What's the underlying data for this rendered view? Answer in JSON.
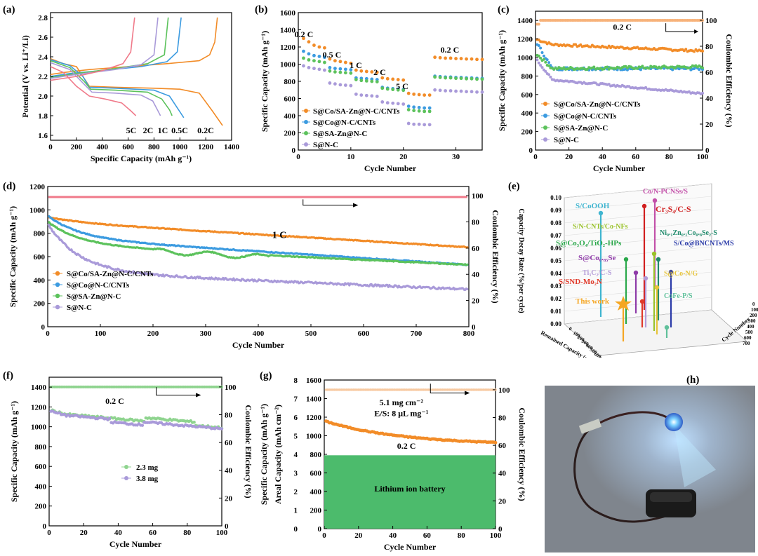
{
  "palette": {
    "orange": "#f28c28",
    "blue": "#3c9be0",
    "green": "#5cc25c",
    "purple": "#a99ad9",
    "pink": "#f07a8a",
    "lightgreen": "#8fd48f",
    "peach": "#f7b27a"
  },
  "panels": {
    "a": {
      "label": "(a)",
      "xlabel": "Specific Capacity (mAh g⁻¹)",
      "ylabel": "Potential (V vs. Li⁺/Li)",
      "xticks": [
        "0",
        "200",
        "400",
        "600",
        "800",
        "1000",
        "1200",
        "1400"
      ],
      "yticks": [
        "1.6",
        "1.8",
        "2.0",
        "2.2",
        "2.4",
        "2.6",
        "2.8"
      ],
      "rate_labels": [
        "5C",
        "2C",
        "1C",
        "0.5C",
        "0.2C"
      ]
    },
    "b": {
      "label": "(b)",
      "xlabel": "Cycle Number",
      "ylabel": "Specific Capacity (mAh g⁻¹)",
      "xticks": [
        "0",
        "10",
        "20",
        "30"
      ],
      "yticks": [
        "0",
        "200",
        "400",
        "600",
        "800",
        "1000",
        "1200",
        "1400",
        "1600"
      ],
      "rates": [
        "0.2 C",
        "0.5 C",
        "1 C",
        "2 C",
        "5 C",
        "0.2 C"
      ],
      "legend": [
        "S@Co/SA-Zn@N-C/CNTs",
        "S@Co@N-C/CNTs",
        "S@SA-Zn@N-C",
        "S@N-C"
      ]
    },
    "c": {
      "label": "(c)",
      "xlabel": "Cycle Number",
      "ylabel": "Specific Capacity (mAh g⁻¹)",
      "y2label": "Coulombic Efficiency (%)",
      "xticks": [
        "0",
        "20",
        "40",
        "60",
        "80",
        "100"
      ],
      "yticks": [
        "0",
        "200",
        "400",
        "600",
        "800",
        "1000",
        "1200",
        "1400"
      ],
      "y2ticks": [
        "0",
        "20",
        "40",
        "60",
        "80",
        "100"
      ],
      "rate": "0.2 C",
      "legend": [
        "S@Co/SA-Zn@N-C/CNTs",
        "S@Co@N-C/CNTs",
        "S@SA-Zn@N-C",
        "S@N-C"
      ]
    },
    "d": {
      "label": "(d)",
      "xlabel": "Cycle Number",
      "ylabel": "Specific Capacity (mAh g⁻¹)",
      "y2label": "Coulombic Efficiency (%)",
      "xticks": [
        "0",
        "100",
        "200",
        "300",
        "400",
        "500",
        "600",
        "700",
        "800"
      ],
      "yticks": [
        "0",
        "200",
        "400",
        "600",
        "800",
        "1000",
        "1200"
      ],
      "y2ticks": [
        "0",
        "20",
        "40",
        "60",
        "80",
        "100"
      ],
      "rate": "1 C",
      "legend": [
        "S@Co/SA-Zn@N-C/CNTs",
        "S@Co@N-C/CNTs",
        "S@SA-Zn@N-C",
        "S@N-C"
      ]
    },
    "e": {
      "label": "(e)",
      "zlabel": "Capacity Decay Rate (%/per cycle)",
      "xlabel": "Remained Capacity (mAh g⁻¹)",
      "ylabel": "Cycle Number",
      "zticks": [
        "0.00",
        "0.01",
        "0.02",
        "0.03",
        "0.04",
        "0.05",
        "0.06",
        "0.07",
        "0.08",
        "0.09",
        "0.10"
      ],
      "works": [
        {
          "name": "Co/N-PCNSs/S",
          "color": "#c24fa8"
        },
        {
          "name": "S/CoOOH",
          "color": "#3fb5d0"
        },
        {
          "name": "Cr₃S₄/C-S",
          "color": "#d11f1f"
        },
        {
          "name": "S/N-CNTs/Co-NFs",
          "color": "#9ac22a"
        },
        {
          "name": "Ni₀.₁Zn₀.₁Co₀.₈Se₂-S",
          "color": "#1f8a6b"
        },
        {
          "name": "S@Co₃O₄/TiO₂-HPs",
          "color": "#2aa84a"
        },
        {
          "name": "S/Co@BNCNTs/MS",
          "color": "#2a3aa8"
        },
        {
          "name": "S@Co₀.₈₅Se",
          "color": "#8e3aa8"
        },
        {
          "name": "Ti₃C₂/C-S",
          "color": "#b49bd8"
        },
        {
          "name": "S@Co-N/G",
          "color": "#e7c43a"
        },
        {
          "name": "S/SND-Mo₂N",
          "color": "#e03a2a"
        },
        {
          "name": "CoFe-P/S",
          "color": "#5fc09a"
        },
        {
          "name": "This work",
          "color": "#f5a623"
        }
      ],
      "xticks": [
        "0",
        "100",
        "200",
        "300",
        "400",
        "500",
        "600",
        "700"
      ],
      "yticks": [
        "700",
        "600",
        "500",
        "400",
        "300",
        "200",
        "100",
        "0"
      ]
    },
    "f": {
      "label": "(f)",
      "xlabel": "Cycle Number",
      "ylabel": "Specific Capacity (mAh g⁻¹)",
      "y2label": "Coulombic Efficiency (%)",
      "xticks": [
        "0",
        "20",
        "40",
        "60",
        "80",
        "100"
      ],
      "yticks": [
        "0",
        "200",
        "400",
        "600",
        "800",
        "1000",
        "1200",
        "1400"
      ],
      "y2ticks": [
        "0",
        "20",
        "40",
        "60",
        "80",
        "100"
      ],
      "rate": "0.2 C",
      "legend": [
        "2.3 mg",
        "3.8 mg"
      ]
    },
    "g": {
      "label": "(g)",
      "xlabel": "Cycle Number",
      "ylabel": "Specific Capacity (mAh g⁻¹)",
      "y3label": "Areal Capacity (mAh cm⁻²)",
      "y2label": "Coulombic Efficiency (%)",
      "xticks": [
        "0",
        "20",
        "40",
        "60",
        "80",
        "100"
      ],
      "yticks": [
        "0",
        "200",
        "400",
        "600",
        "800",
        "1000",
        "1200",
        "1400",
        "1600"
      ],
      "y3ticks": [
        "0",
        "1",
        "2",
        "3",
        "4",
        "5",
        "6",
        "7",
        "8"
      ],
      "y2ticks": [
        "0",
        "20",
        "40",
        "60",
        "80",
        "100"
      ],
      "loading": "5.1 mg cm⁻²",
      "es": "E/S: 8 μL mg⁻¹",
      "rate": "0.2 C",
      "box_label": "Lithium ion battery"
    },
    "h": {
      "label": "(h)"
    }
  },
  "chart_data": [
    {
      "panel": "a",
      "type": "line",
      "title": "",
      "xlabel": "Specific Capacity (mAh g⁻¹)",
      "ylabel": "Potential (V vs. Li⁺/Li)",
      "xlim": [
        0,
        1400
      ],
      "ylim": [
        1.55,
        2.85
      ],
      "series": [
        {
          "name": "0.2C",
          "color": "#f28c28",
          "discharge": [
            [
              0,
              2.38
            ],
            [
              100,
              2.33
            ],
            [
              200,
              2.3
            ],
            [
              260,
              2.18
            ],
            [
              300,
              2.1
            ],
            [
              500,
              2.09
            ],
            [
              800,
              2.08
            ],
            [
              1000,
              2.07
            ],
            [
              1150,
              2.03
            ],
            [
              1250,
              1.85
            ],
            [
              1330,
              1.7
            ]
          ],
          "charge": [
            [
              0,
              2.22
            ],
            [
              100,
              2.24
            ],
            [
              300,
              2.27
            ],
            [
              600,
              2.3
            ],
            [
              900,
              2.33
            ],
            [
              1150,
              2.36
            ],
            [
              1230,
              2.42
            ],
            [
              1270,
              2.55
            ],
            [
              1290,
              2.8
            ]
          ]
        },
        {
          "name": "0.5C",
          "color": "#3c9be0",
          "discharge": [
            [
              0,
              2.37
            ],
            [
              150,
              2.31
            ],
            [
              250,
              2.2
            ],
            [
              300,
              2.09
            ],
            [
              500,
              2.08
            ],
            [
              800,
              2.06
            ],
            [
              920,
              2.0
            ],
            [
              980,
              1.88
            ],
            [
              1030,
              1.78
            ]
          ],
          "charge": [
            [
              0,
              2.2
            ],
            [
              150,
              2.23
            ],
            [
              400,
              2.26
            ],
            [
              700,
              2.3
            ],
            [
              900,
              2.35
            ],
            [
              980,
              2.45
            ],
            [
              1010,
              2.8
            ]
          ]
        },
        {
          "name": "1C",
          "color": "#5cc25c",
          "discharge": [
            [
              0,
              2.36
            ],
            [
              150,
              2.29
            ],
            [
              260,
              2.15
            ],
            [
              310,
              2.07
            ],
            [
              500,
              2.06
            ],
            [
              750,
              2.04
            ],
            [
              860,
              1.97
            ],
            [
              920,
              1.86
            ],
            [
              940,
              1.8
            ]
          ],
          "charge": [
            [
              0,
              2.19
            ],
            [
              200,
              2.23
            ],
            [
              500,
              2.28
            ],
            [
              750,
              2.33
            ],
            [
              880,
              2.42
            ],
            [
              910,
              2.8
            ]
          ]
        },
        {
          "name": "2C",
          "color": "#a99ad9",
          "discharge": [
            [
              0,
              2.34
            ],
            [
              150,
              2.27
            ],
            [
              260,
              2.12
            ],
            [
              320,
              2.04
            ],
            [
              500,
              2.03
            ],
            [
              700,
              2.01
            ],
            [
              790,
              1.95
            ],
            [
              830,
              1.85
            ],
            [
              850,
              1.8
            ]
          ],
          "charge": [
            [
              0,
              2.18
            ],
            [
              200,
              2.22
            ],
            [
              500,
              2.27
            ],
            [
              700,
              2.32
            ],
            [
              800,
              2.42
            ],
            [
              830,
              2.8
            ]
          ]
        },
        {
          "name": "5C",
          "color": "#f07a8a",
          "discharge": [
            [
              0,
              2.3
            ],
            [
              100,
              2.24
            ],
            [
              200,
              2.1
            ],
            [
              300,
              2.0
            ],
            [
              420,
              1.97
            ],
            [
              550,
              1.93
            ],
            [
              620,
              1.85
            ],
            [
              660,
              1.8
            ]
          ],
          "charge": [
            [
              0,
              2.16
            ],
            [
              200,
              2.2
            ],
            [
              400,
              2.26
            ],
            [
              560,
              2.33
            ],
            [
              620,
              2.45
            ],
            [
              650,
              2.8
            ]
          ]
        }
      ]
    },
    {
      "panel": "b",
      "type": "scatter",
      "title": "",
      "xlabel": "Cycle Number",
      "ylabel": "Specific Capacity (mAh g⁻¹)",
      "xlim": [
        0,
        35
      ],
      "ylim": [
        0,
        1600
      ],
      "series": [
        {
          "name": "S@Co/SA-Zn@N-C/CNTs",
          "color": "#f28c28",
          "values": [
            1300,
            1260,
            1220,
            1200,
            1190,
            1060,
            1040,
            1030,
            1020,
            1010,
            930,
            920,
            915,
            910,
            905,
            840,
            830,
            825,
            820,
            815,
            660,
            650,
            645,
            640,
            640,
            1080,
            1075,
            1070,
            1070,
            1065,
            1065,
            1060,
            1060,
            1055,
            1055
          ]
        },
        {
          "name": "S@Co@N-C/CNTs",
          "color": "#3c9be0",
          "values": [
            1150,
            1120,
            1100,
            1090,
            1080,
            960,
            950,
            945,
            940,
            935,
            840,
            835,
            830,
            825,
            820,
            730,
            720,
            715,
            710,
            705,
            510,
            500,
            495,
            490,
            490,
            860,
            855,
            850,
            850,
            845,
            845,
            840,
            840,
            835,
            835
          ]
        },
        {
          "name": "S@SA-Zn@N-C",
          "color": "#5cc25c",
          "values": [
            1070,
            1050,
            1040,
            1030,
            1020,
            920,
            910,
            905,
            900,
            895,
            820,
            810,
            805,
            800,
            795,
            720,
            710,
            705,
            700,
            695,
            470,
            460,
            455,
            450,
            450,
            850,
            845,
            840,
            840,
            835,
            835,
            830,
            830,
            825,
            825
          ]
        },
        {
          "name": "S@N-C",
          "color": "#a99ad9",
          "values": [
            980,
            960,
            950,
            940,
            930,
            780,
            770,
            760,
            755,
            750,
            650,
            640,
            635,
            630,
            625,
            560,
            550,
            545,
            540,
            535,
            310,
            300,
            300,
            295,
            295,
            700,
            695,
            690,
            690,
            685,
            685,
            680,
            680,
            675,
            675
          ]
        }
      ]
    },
    {
      "panel": "c",
      "type": "scatter",
      "title": "",
      "xlabel": "Cycle Number",
      "ylabel": "Specific Capacity (mAh g⁻¹)",
      "y2label": "Coulombic Efficiency (%)",
      "xlim": [
        0,
        100
      ],
      "ylim": [
        0,
        1500
      ],
      "y2lim": [
        0,
        107
      ],
      "series": [
        {
          "name": "S@Co/SA-Zn@N-C/CNTs",
          "color": "#f28c28",
          "start": 1200,
          "end": 1070,
          "dip": 1140,
          "noise": 12
        },
        {
          "name": "S@Co@N-C/CNTs",
          "color": "#3c9be0",
          "start": 1180,
          "end": 880,
          "dip": 880,
          "noise": 15
        },
        {
          "name": "S@SA-Zn@N-C",
          "color": "#5cc25c",
          "start": 1050,
          "end": 900,
          "dip": 880,
          "noise": 15
        },
        {
          "name": "S@N-C",
          "color": "#a99ad9",
          "start": 990,
          "end": 610,
          "dip": 760,
          "noise": 10
        }
      ],
      "ce": 100
    },
    {
      "panel": "d",
      "type": "scatter",
      "title": "",
      "xlabel": "Cycle Number",
      "ylabel": "Specific Capacity (mAh g⁻¹)",
      "y2label": "Coulombic Efficiency (%)",
      "xlim": [
        0,
        800
      ],
      "ylim": [
        0,
        1200
      ],
      "y2lim": [
        0,
        107
      ],
      "series": [
        {
          "name": "S@Co/SA-Zn@N-C/CNTs",
          "color": "#f28c28",
          "start": 940,
          "end": 680,
          "knee": 900
        },
        {
          "name": "S@Co@N-C/CNTs",
          "color": "#3c9be0",
          "start": 950,
          "end": 530,
          "knee": 760
        },
        {
          "name": "S@SA-Zn@N-C",
          "color": "#5cc25c",
          "start": 900,
          "end": 530,
          "knee": 700
        },
        {
          "name": "S@N-C",
          "color": "#a99ad9",
          "start": 880,
          "end": 320,
          "knee": 470
        }
      ],
      "ce": 99
    },
    {
      "panel": "f",
      "type": "scatter",
      "title": "",
      "xlabel": "Cycle Number",
      "ylabel": "Specific Capacity (mAh g⁻¹)",
      "y2label": "Coulombic Efficiency (%)",
      "xlim": [
        0,
        100
      ],
      "ylim": [
        0,
        1500
      ],
      "y2lim": [
        0,
        107
      ],
      "series": [
        {
          "name": "2.3 mg",
          "color": "#8fd48f",
          "start": 1140,
          "end": 990
        },
        {
          "name": "3.8 mg",
          "color": "#a99ad9",
          "start": 1130,
          "end": 980
        }
      ],
      "ce": 100
    },
    {
      "panel": "g",
      "type": "scatter",
      "title": "",
      "xlabel": "Cycle Number",
      "ylabel": "Specific Capacity (mAh g⁻¹)",
      "y2label": "Coulombic Efficiency (%)",
      "xlim": [
        0,
        100
      ],
      "ylim": [
        0,
        1600
      ],
      "y2lim": [
        0,
        107
      ],
      "series": [
        {
          "name": "",
          "color": "#f28c28",
          "start": 1160,
          "end": 900
        }
      ],
      "ce": 100
    }
  ]
}
